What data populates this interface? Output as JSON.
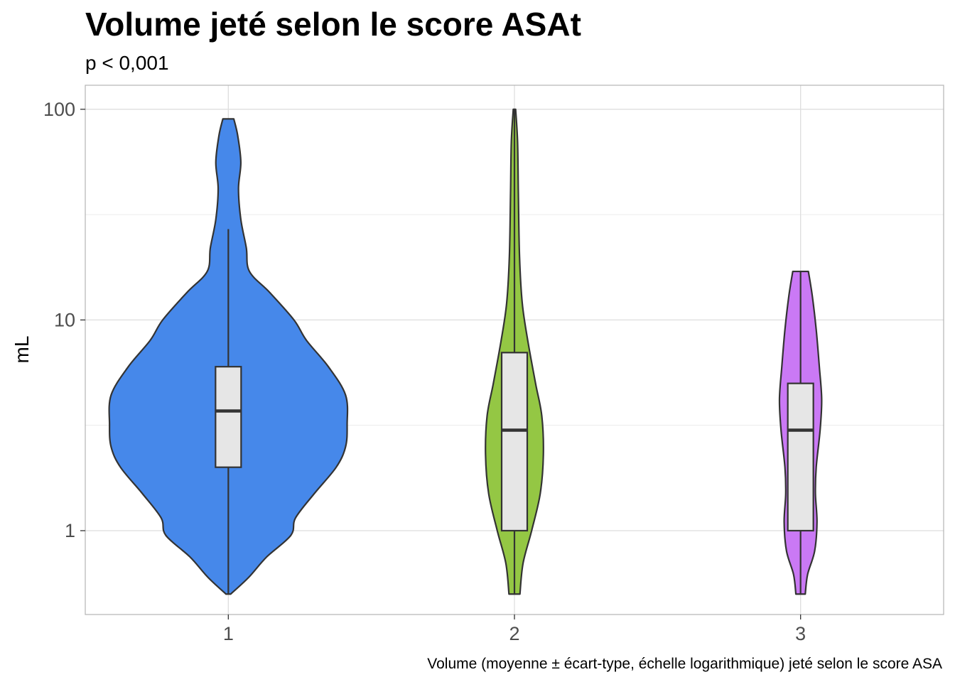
{
  "chart_data": {
    "type": "violin",
    "title": "Volume jeté selon le score ASAt",
    "subtitle": "p < 0,001",
    "xlabel": "",
    "ylabel": "mL",
    "caption": "Volume (moyenne ± écart-type, échelle logarithmique) jeté selon le score ASA",
    "y_scale": "log10",
    "ylim": [
      0.4,
      130
    ],
    "y_ticks": [
      1,
      10,
      100
    ],
    "y_tick_labels": [
      "1",
      "10",
      "100"
    ],
    "grid": true,
    "legend": "none",
    "categories": [
      "1",
      "2",
      "3"
    ],
    "series": [
      {
        "category": "1",
        "color": "#4688EA",
        "box": {
          "min": 0.5,
          "q1": 2,
          "median": 3.7,
          "q3": 6,
          "max": 27
        },
        "violin_range": [
          0.5,
          90
        ],
        "density": [
          [
            0.5,
            0.03
          ],
          [
            0.6,
            0.26
          ],
          [
            0.75,
            0.49
          ],
          [
            0.95,
            0.8
          ],
          [
            1.15,
            0.86
          ],
          [
            1.5,
            1.1
          ],
          [
            2.0,
            1.38
          ],
          [
            2.5,
            1.5
          ],
          [
            3.2,
            1.52
          ],
          [
            4.4,
            1.5
          ],
          [
            6.0,
            1.28
          ],
          [
            8.0,
            1.0
          ],
          [
            10.0,
            0.84
          ],
          [
            13.5,
            0.53
          ],
          [
            17.0,
            0.27
          ],
          [
            22.0,
            0.23
          ],
          [
            30.0,
            0.16
          ],
          [
            42.0,
            0.13
          ],
          [
            56.0,
            0.16
          ],
          [
            75.0,
            0.12
          ],
          [
            90.0,
            0.07
          ]
        ]
      },
      {
        "category": "2",
        "color": "#94C744",
        "box": {
          "min": 0.5,
          "q1": 1,
          "median": 3,
          "q3": 7,
          "max": 100
        },
        "violin_range": [
          0.5,
          100
        ],
        "density": [
          [
            0.5,
            0.07
          ],
          [
            0.7,
            0.11
          ],
          [
            1.0,
            0.22
          ],
          [
            1.5,
            0.33
          ],
          [
            2.3,
            0.37
          ],
          [
            3.5,
            0.35
          ],
          [
            5.0,
            0.27
          ],
          [
            8.0,
            0.17
          ],
          [
            12.0,
            0.1
          ],
          [
            20.0,
            0.065
          ],
          [
            40.0,
            0.05
          ],
          [
            70.0,
            0.04
          ],
          [
            100.0,
            0.015
          ]
        ]
      },
      {
        "category": "3",
        "color": "#CA79F5",
        "box": {
          "min": 0.5,
          "q1": 1,
          "median": 3,
          "q3": 5,
          "max": 17
        },
        "violin_range": [
          0.5,
          17
        ],
        "density": [
          [
            0.5,
            0.06
          ],
          [
            0.62,
            0.09
          ],
          [
            0.8,
            0.18
          ],
          [
            1.1,
            0.21
          ],
          [
            1.5,
            0.19
          ],
          [
            2.0,
            0.2
          ],
          [
            3.0,
            0.25
          ],
          [
            4.2,
            0.27
          ],
          [
            6.0,
            0.24
          ],
          [
            9.0,
            0.2
          ],
          [
            13.0,
            0.15
          ],
          [
            17.0,
            0.1
          ]
        ]
      }
    ]
  }
}
